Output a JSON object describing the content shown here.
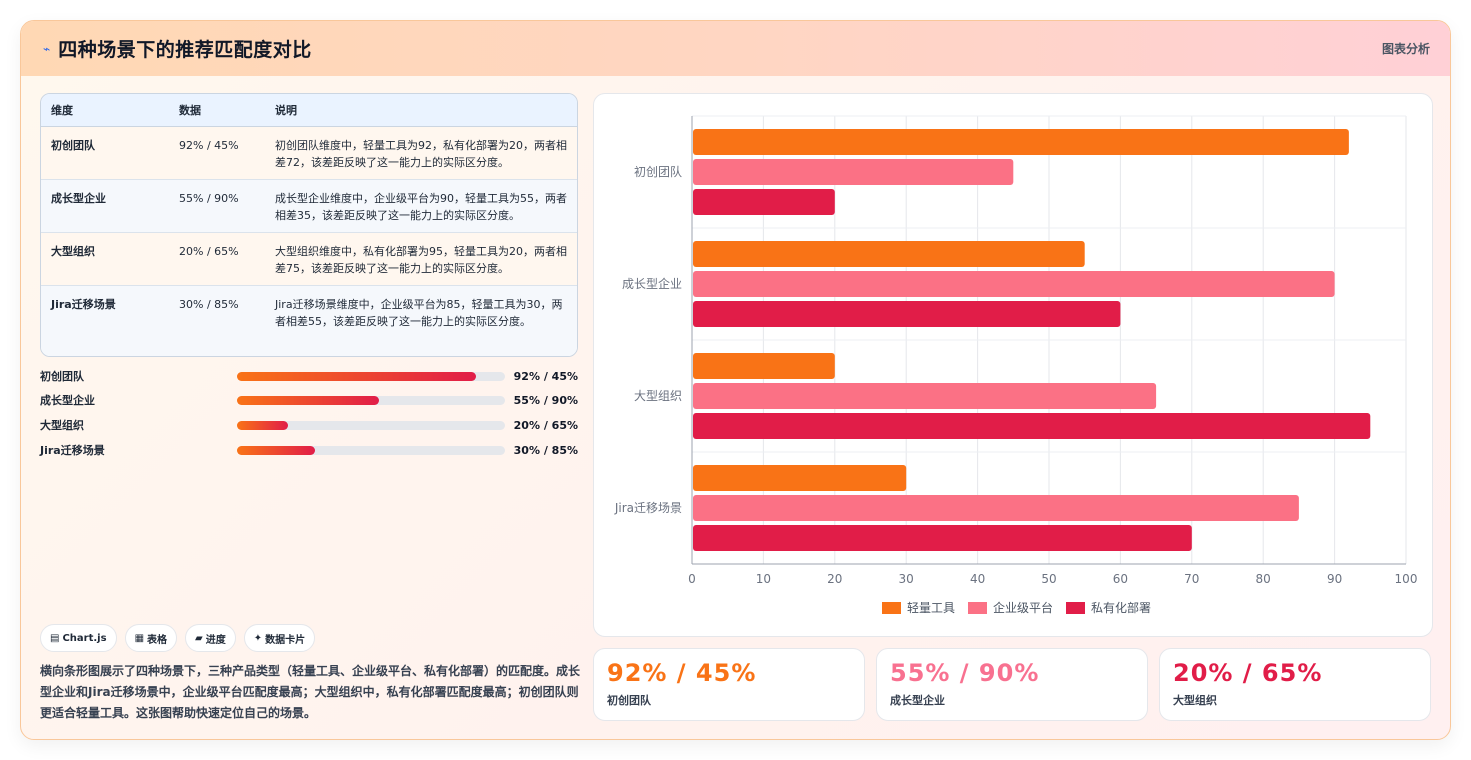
{
  "header": {
    "title": "四种场景下的推荐匹配度对比",
    "tag": "图表分析",
    "icon": "chart-icon"
  },
  "table": {
    "headers": [
      "维度",
      "数据",
      "说明"
    ],
    "rows": [
      {
        "dim": "初创团队",
        "data": "92% / 45%",
        "desc": "初创团队维度中，轻量工具为92，私有化部署为20，两者相差72，该差距反映了这一能力上的实际区分度。"
      },
      {
        "dim": "成长型企业",
        "data": "55% / 90%",
        "desc": "成长型企业维度中，企业级平台为90，轻量工具为55，两者相差35，该差距反映了这一能力上的实际区分度。"
      },
      {
        "dim": "大型组织",
        "data": "20% / 65%",
        "desc": "大型组织维度中，私有化部署为95，轻量工具为20，两者相差75，该差距反映了这一能力上的实际区分度。"
      },
      {
        "dim": "Jira迁移场景",
        "data": "30% / 85%",
        "desc": "Jira迁移场景维度中，企业级平台为85，轻量工具为30，两者相差55，该差距反映了这一能力上的实际区分度。"
      }
    ]
  },
  "progress": [
    {
      "label": "初创团队",
      "value": "92% / 45%",
      "fill": 0.89
    },
    {
      "label": "成长型企业",
      "value": "55% / 90%",
      "fill": 0.53
    },
    {
      "label": "大型组织",
      "value": "20% / 65%",
      "fill": 0.19
    },
    {
      "label": "Jira迁移场景",
      "value": "30% / 85%",
      "fill": 0.29
    }
  ],
  "chips": [
    {
      "icon": "chart-icon",
      "glyph": "▤",
      "label": "Chart.js"
    },
    {
      "icon": "table-icon",
      "glyph": "▦",
      "label": "表格"
    },
    {
      "icon": "progress-icon",
      "glyph": "▰",
      "label": "进度"
    },
    {
      "icon": "sparkle-icon",
      "glyph": "✦",
      "label": "数据卡片"
    }
  ],
  "summary": "横向条形图展示了四种场景下，三种产品类型（轻量工具、企业级平台、私有化部署）的匹配度。成长型企业和Jira迁移场景中，企业级平台匹配度最高；大型组织中，私有化部署匹配度最高；初创团队则更适合轻量工具。这张图帮助快速定位自己的场景。",
  "stats": [
    {
      "value": "92% / 45%",
      "label": "初创团队",
      "color": "#f97316"
    },
    {
      "value": "55% / 90%",
      "label": "成长型企业",
      "color": "#f87190"
    },
    {
      "value": "20% / 65%",
      "label": "大型组织",
      "color": "#e11d48"
    }
  ],
  "chart_data": {
    "type": "bar",
    "orientation": "horizontal",
    "categories": [
      "初创团队",
      "成长型企业",
      "大型组织",
      "Jira迁移场景"
    ],
    "series": [
      {
        "name": "轻量工具",
        "values": [
          92,
          55,
          20,
          30
        ],
        "color": "#f97316"
      },
      {
        "name": "企业级平台",
        "values": [
          45,
          90,
          65,
          85
        ],
        "color": "#fb7185"
      },
      {
        "name": "私有化部署",
        "values": [
          20,
          60,
          95,
          70
        ],
        "color": "#e11d48"
      }
    ],
    "xlim": [
      0,
      100
    ],
    "xticks": [
      0,
      10,
      20,
      30,
      40,
      50,
      60,
      70,
      80,
      90,
      100
    ],
    "grid": true,
    "legend": "bottom"
  }
}
